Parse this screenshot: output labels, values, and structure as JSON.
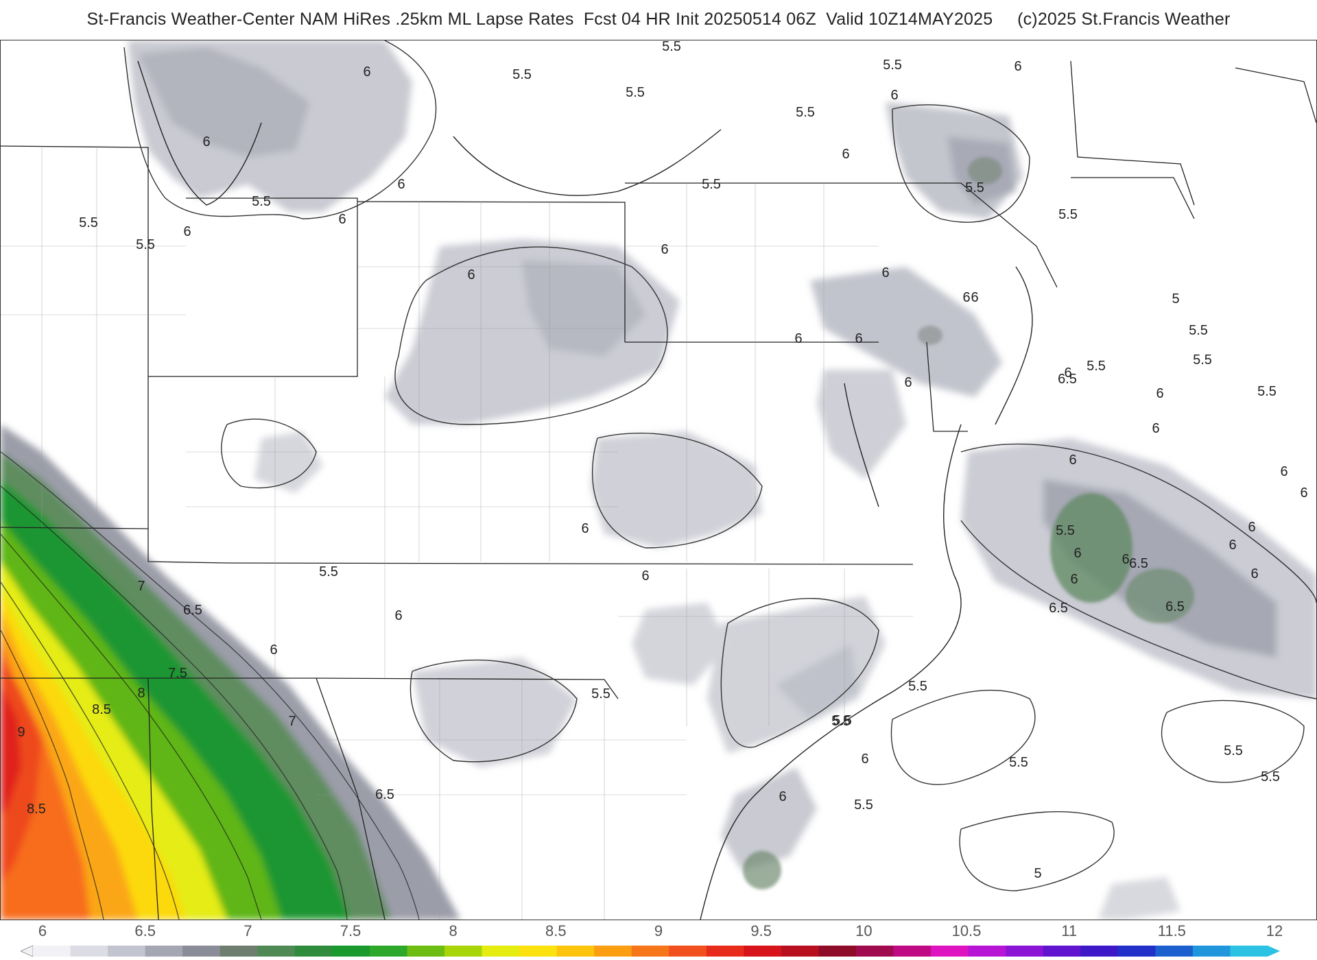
{
  "header": {
    "title": "St-Francis Weather-Center NAM HiRes .25km ML Lapse Rates  Fcst 04 HR Init 20250514 06Z  Valid 10Z14MAY2025     (c)2025 St.Francis Weather"
  },
  "map": {
    "contour_labels": [
      {
        "text": "6"
      },
      {
        "text": "5.5"
      },
      {
        "text": "5.5"
      },
      {
        "text": "5.5"
      },
      {
        "text": "6"
      },
      {
        "text": "6"
      },
      {
        "text": "5.5"
      },
      {
        "text": "6"
      },
      {
        "text": "5.5"
      },
      {
        "text": "5.5"
      },
      {
        "text": "5.5"
      },
      {
        "text": "5.5"
      },
      {
        "text": "6"
      },
      {
        "text": "6"
      },
      {
        "text": "5.5"
      },
      {
        "text": "6"
      },
      {
        "text": "5.5"
      },
      {
        "text": "5.5"
      },
      {
        "text": "6"
      },
      {
        "text": "6"
      },
      {
        "text": "6"
      },
      {
        "text": "6"
      },
      {
        "text": "6"
      },
      {
        "text": "5.5"
      },
      {
        "text": "6"
      },
      {
        "text": "6"
      },
      {
        "text": "6"
      },
      {
        "text": "6"
      },
      {
        "text": "6.5"
      },
      {
        "text": "6.5"
      },
      {
        "text": "6"
      },
      {
        "text": "6.5"
      },
      {
        "text": "6"
      },
      {
        "text": "5"
      },
      {
        "text": "5.5"
      },
      {
        "text": "5.5"
      },
      {
        "text": "5.5"
      },
      {
        "text": "6.5"
      },
      {
        "text": "5.5"
      },
      {
        "text": "6"
      },
      {
        "text": "6"
      },
      {
        "text": "6"
      },
      {
        "text": "6"
      },
      {
        "text": "6"
      },
      {
        "text": "6"
      },
      {
        "text": "6"
      },
      {
        "text": "6"
      },
      {
        "text": "5.5"
      },
      {
        "text": "6"
      },
      {
        "text": "6"
      },
      {
        "text": "5.5"
      },
      {
        "text": "5.5"
      },
      {
        "text": "5.5"
      },
      {
        "text": "5.5"
      },
      {
        "text": "5.5"
      },
      {
        "text": "6"
      },
      {
        "text": "6"
      },
      {
        "text": "5"
      },
      {
        "text": "5.5"
      },
      {
        "text": "6.5"
      },
      {
        "text": "7"
      },
      {
        "text": "6"
      },
      {
        "text": "7.5"
      },
      {
        "text": "8"
      },
      {
        "text": "8.5"
      },
      {
        "text": "9"
      },
      {
        "text": "7"
      },
      {
        "text": "6.5"
      },
      {
        "text": "8.5"
      },
      {
        "text": "5.5"
      },
      {
        "text": "6"
      },
      {
        "text": "6"
      },
      {
        "text": "5.5"
      },
      {
        "text": "5.5"
      },
      {
        "text": "6"
      }
    ]
  },
  "colorbar": {
    "ticks": [
      "6",
      "6.5",
      "7",
      "7.5",
      "8",
      "8.5",
      "9",
      "9.5",
      "10",
      "10.5",
      "11",
      "11.5",
      "12"
    ],
    "colors": [
      "#f2f2f6",
      "#dcdde4",
      "#c2c4cf",
      "#a4a6b2",
      "#8a8c98",
      "#6d7d6f",
      "#4f8a55",
      "#2f8c3c",
      "#1a9a2c",
      "#2ea82a",
      "#6cbc12",
      "#a8d40a",
      "#e4ec10",
      "#fbe10e",
      "#fdc40e",
      "#fb9e12",
      "#f7761a",
      "#f2501e",
      "#e82c1c",
      "#d6141a",
      "#b8101e",
      "#8e0c28",
      "#a00a4e",
      "#c00a84",
      "#de14c0",
      "#b814d6",
      "#8c14d6",
      "#6014d0",
      "#3c18c8",
      "#2030c8",
      "#1c60d0",
      "#2096dc",
      "#2cc2e4"
    ]
  }
}
